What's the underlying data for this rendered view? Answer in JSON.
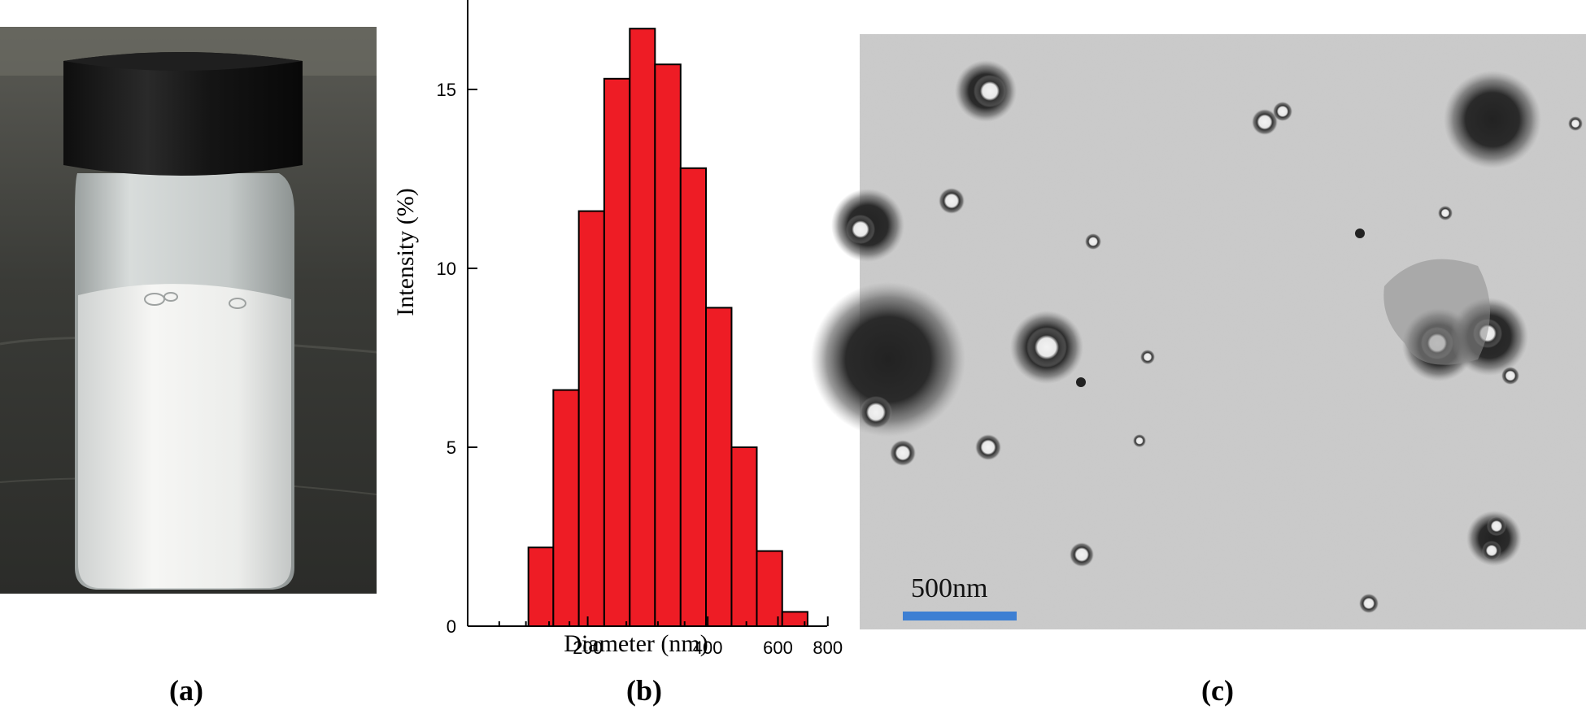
{
  "captions": {
    "a": "(a)",
    "b": "(b)",
    "c": "(c)"
  },
  "photo": {
    "description_icon": "vial-icon"
  },
  "tem": {
    "scale_label": "500nm",
    "scale_color": "#3d7fd3"
  },
  "chart_data": {
    "type": "bar",
    "xlabel": "Diameter (nm)",
    "ylabel": "Intensity (%)",
    "x_scale": "log",
    "xlim": [
      100,
      820
    ],
    "ylim": [
      0,
      17.5
    ],
    "x_ticks": [
      200,
      400,
      600,
      800
    ],
    "y_ticks": [
      0,
      5,
      10,
      15
    ],
    "bar_color": "#ee1c25",
    "bins": [
      {
        "from": 142,
        "to": 164,
        "value": 2.2
      },
      {
        "from": 164,
        "to": 190,
        "value": 6.6
      },
      {
        "from": 190,
        "to": 220,
        "value": 11.6
      },
      {
        "from": 220,
        "to": 255,
        "value": 15.3
      },
      {
        "from": 255,
        "to": 295,
        "value": 16.7
      },
      {
        "from": 295,
        "to": 342,
        "value": 15.7
      },
      {
        "from": 342,
        "to": 396,
        "value": 12.8
      },
      {
        "from": 396,
        "to": 459,
        "value": 8.9
      },
      {
        "from": 459,
        "to": 531,
        "value": 5.0
      },
      {
        "from": 531,
        "to": 615,
        "value": 2.1
      },
      {
        "from": 615,
        "to": 712,
        "value": 0.4
      }
    ]
  }
}
